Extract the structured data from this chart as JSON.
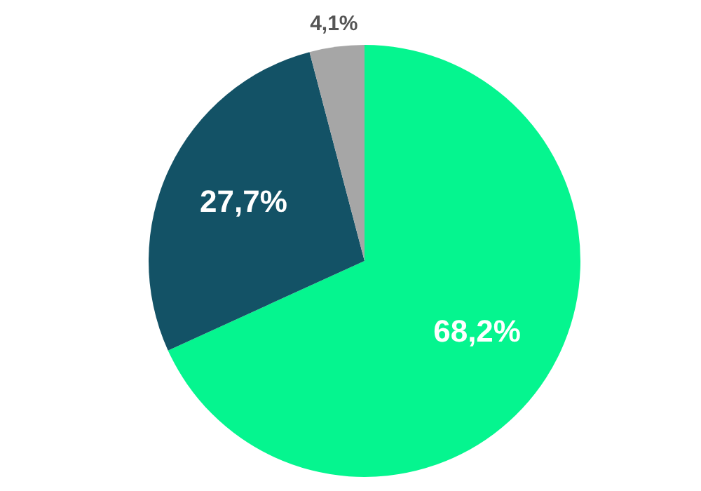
{
  "chart_data": {
    "type": "pie",
    "categories": [
      null,
      null,
      null
    ],
    "values": [
      68.2,
      27.7,
      4.1
    ],
    "colors": [
      "#05f58f",
      "#135266",
      "#a6a6a6"
    ],
    "value_labels": [
      "68,2%",
      "27,7%",
      "4,1%"
    ]
  }
}
